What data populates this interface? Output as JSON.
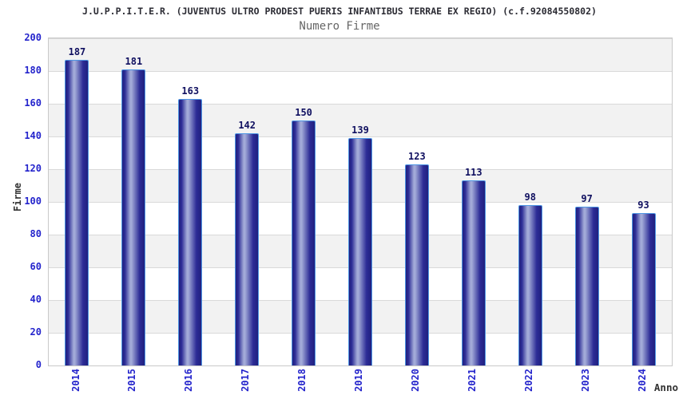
{
  "header": {
    "title": "J.U.P.P.I.T.E.R. (JUVENTUS ULTRO PRODEST PUERIS INFANTIBUS TERRAE EX REGIO) (c.f.92084550802)",
    "subtitle": "Numero Firme"
  },
  "chart_data": {
    "type": "bar",
    "title": "Numero Firme",
    "categories": [
      "2014",
      "2015",
      "2016",
      "2017",
      "2018",
      "2019",
      "2020",
      "2021",
      "2022",
      "2023",
      "2024"
    ],
    "values": [
      187,
      181,
      163,
      142,
      150,
      139,
      123,
      113,
      98,
      97,
      93
    ],
    "xlabel": "Anno",
    "ylabel": "Firme",
    "ylim": [
      0,
      200
    ],
    "ytick_step": 20,
    "yticks": [
      0,
      20,
      40,
      60,
      80,
      100,
      120,
      140,
      160,
      180,
      200
    ],
    "grid": true,
    "legend": "none",
    "colors": {
      "bar_edge_dark": "#20207e",
      "bar_body_dark": "#2c2c96",
      "bar_highlight": "#a2aad8",
      "bar_border": "#4e96e4",
      "axis_tick_label": "#2424cc",
      "bar_value_label": "#101060",
      "band_gray": "#f2f2f2",
      "band_white": "#ffffff",
      "gridline": "#d9d9d9",
      "plot_border": "#c9c9c9",
      "title_text": "#2b2b33",
      "subtitle_text": "#666666",
      "axis_title_text": "#333333"
    }
  }
}
